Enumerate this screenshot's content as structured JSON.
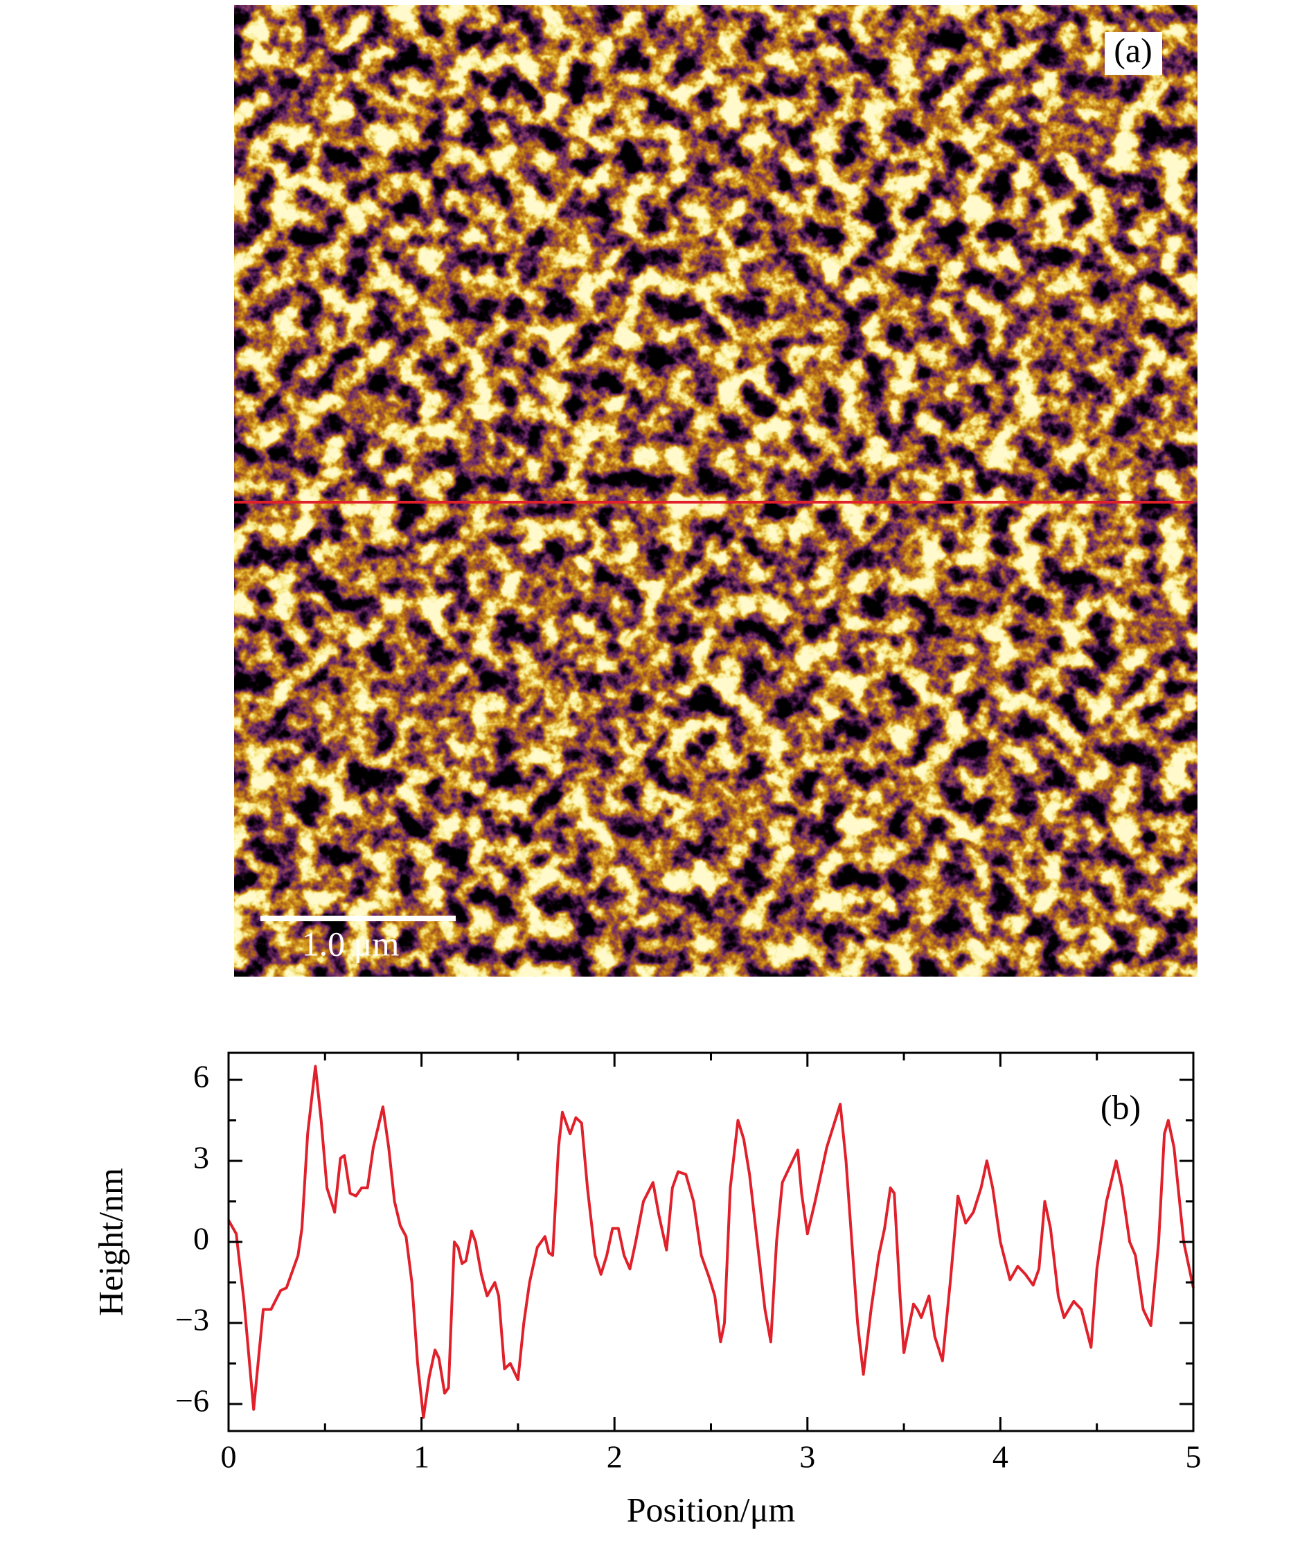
{
  "image_panel": {
    "label": "(a)",
    "scale_bar": "1.0 μm"
  },
  "chart_data": {
    "type": "line",
    "label": "(b)",
    "xlabel": "Position/μm",
    "ylabel": "Height/nm",
    "color": "#e0202a",
    "xlim": [
      0,
      5
    ],
    "ylim": [
      -7,
      7
    ],
    "xticks": [
      0,
      1,
      2,
      3,
      4,
      5
    ],
    "yticks": [
      {
        "value": -6,
        "label": "−6"
      },
      {
        "value": -3,
        "label": "−3"
      },
      0,
      3,
      6
    ],
    "xminorticks": [
      0.5,
      1.5,
      2.5,
      3.5,
      4.5
    ],
    "yminorticks": [
      -4.5,
      -1.5,
      1.5,
      4.5
    ],
    "x": [
      0,
      0.04,
      0.08,
      0.13,
      0.18,
      0.22,
      0.27,
      0.3,
      0.36,
      0.38,
      0.41,
      0.45,
      0.48,
      0.51,
      0.55,
      0.58,
      0.6,
      0.63,
      0.66,
      0.69,
      0.72,
      0.75,
      0.8,
      0.83,
      0.86,
      0.89,
      0.92,
      0.95,
      0.98,
      1.01,
      1.04,
      1.07,
      1.09,
      1.12,
      1.14,
      1.17,
      1.19,
      1.21,
      1.23,
      1.26,
      1.28,
      1.31,
      1.34,
      1.38,
      1.4,
      1.43,
      1.46,
      1.5,
      1.53,
      1.56,
      1.6,
      1.64,
      1.66,
      1.68,
      1.71,
      1.73,
      1.77,
      1.8,
      1.83,
      1.86,
      1.9,
      1.93,
      1.96,
      1.99,
      2.02,
      2.05,
      2.08,
      2.11,
      2.15,
      2.2,
      2.23,
      2.27,
      2.3,
      2.33,
      2.37,
      2.41,
      2.45,
      2.49,
      2.52,
      2.55,
      2.57,
      2.6,
      2.64,
      2.67,
      2.7,
      2.74,
      2.78,
      2.81,
      2.84,
      2.87,
      2.91,
      2.95,
      2.97,
      3.0,
      3.04,
      3.1,
      3.17,
      3.2,
      3.23,
      3.26,
      3.29,
      3.33,
      3.37,
      3.4,
      3.43,
      3.45,
      3.48,
      3.5,
      3.55,
      3.57,
      3.59,
      3.63,
      3.66,
      3.7,
      3.74,
      3.78,
      3.82,
      3.86,
      3.9,
      3.93,
      3.96,
      4.0,
      4.05,
      4.09,
      4.13,
      4.17,
      4.2,
      4.23,
      4.26,
      4.3,
      4.33,
      4.38,
      4.42,
      4.47,
      4.5,
      4.55,
      4.6,
      4.63,
      4.67,
      4.7,
      4.74,
      4.78,
      4.82,
      4.85,
      4.87,
      4.9,
      4.95,
      5.0
    ],
    "values": [
      0.8,
      0.3,
      -2.2,
      -6.2,
      -2.5,
      -2.5,
      -1.8,
      -1.7,
      -0.5,
      0.5,
      4.0,
      6.5,
      4.5,
      2.0,
      1.1,
      3.1,
      3.2,
      1.8,
      1.7,
      2.0,
      2.0,
      3.5,
      5.0,
      3.5,
      1.5,
      0.6,
      0.2,
      -1.5,
      -4.5,
      -6.5,
      -5.0,
      -4.0,
      -4.3,
      -5.6,
      -5.4,
      0,
      -0.2,
      -0.8,
      -0.7,
      0.4,
      0,
      -1.2,
      -2.0,
      -1.5,
      -2.0,
      -4.7,
      -4.5,
      -5.1,
      -3.0,
      -1.5,
      -0.2,
      0.2,
      -0.4,
      -0.5,
      3.5,
      4.8,
      4.0,
      4.6,
      4.4,
      2.0,
      -0.5,
      -1.2,
      -0.5,
      0.5,
      0.5,
      -0.5,
      -1.0,
      0,
      1.5,
      2.2,
      1.0,
      -0.3,
      2.0,
      2.6,
      2.5,
      1.5,
      -0.5,
      -1.3,
      -2.0,
      -3.7,
      -3.0,
      2.0,
      4.5,
      3.8,
      2.5,
      0,
      -2.5,
      -3.7,
      0,
      2.2,
      2.8,
      3.4,
      1.8,
      0.3,
      1.5,
      3.5,
      5.1,
      3.0,
      0,
      -3.0,
      -4.9,
      -2.5,
      -0.5,
      0.5,
      2.0,
      1.8,
      -2.0,
      -4.1,
      -2.3,
      -2.5,
      -2.8,
      -2.0,
      -3.5,
      -4.4,
      -1.5,
      1.7,
      0.7,
      1.1,
      2.0,
      3.0,
      2.0,
      0,
      -1.4,
      -0.9,
      -1.2,
      -1.6,
      -1.0,
      1.5,
      0.5,
      -2.0,
      -2.8,
      -2.2,
      -2.5,
      -3.9,
      -1.0,
      1.5,
      3.0,
      2.0,
      0,
      -0.5,
      -2.5,
      -3.1,
      0,
      4.0,
      4.5,
      3.5,
      0,
      -1.7
    ]
  }
}
